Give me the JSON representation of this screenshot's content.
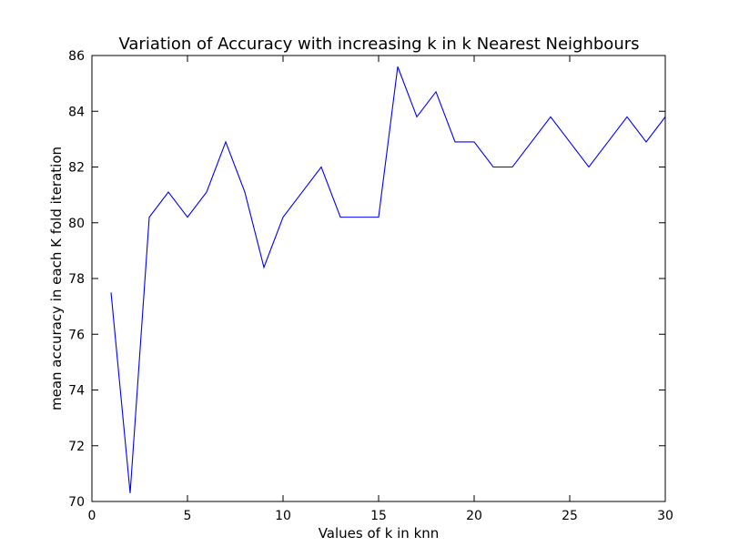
{
  "chart_data": {
    "type": "line",
    "title": "Variation of Accuracy with increasing k in k Nearest Neighbours",
    "xlabel": "Values of k in knn",
    "ylabel": "mean accuracy in each K fold iteration",
    "xlim": [
      0,
      30
    ],
    "ylim": [
      70,
      86
    ],
    "xticks": [
      0,
      5,
      10,
      15,
      20,
      25,
      30
    ],
    "yticks": [
      70,
      72,
      74,
      76,
      78,
      80,
      82,
      84,
      86
    ],
    "grid": false,
    "legend": "none",
    "series": [
      {
        "name": "accuracy",
        "color": "#0000ff",
        "x": [
          1,
          2,
          3,
          4,
          5,
          6,
          7,
          8,
          9,
          10,
          11,
          12,
          13,
          14,
          15,
          16,
          17,
          18,
          19,
          20,
          21,
          22,
          23,
          24,
          25,
          26,
          27,
          28,
          29,
          30
        ],
        "y": [
          77.5,
          70.3,
          80.2,
          81.1,
          80.2,
          81.1,
          82.9,
          81.1,
          78.4,
          80.2,
          81.1,
          82.0,
          80.2,
          80.2,
          80.2,
          85.6,
          83.8,
          84.7,
          82.9,
          82.9,
          82.0,
          82.0,
          82.9,
          83.8,
          82.9,
          82.0,
          82.9,
          83.8,
          82.9,
          83.8
        ]
      }
    ]
  }
}
